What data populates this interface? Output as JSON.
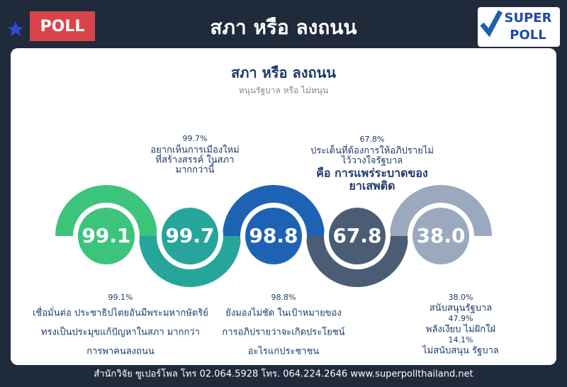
{
  "header": {
    "badge": "POLL",
    "title": "สภา หรือ ลงถนน",
    "logo_top": "SUPER",
    "logo_bottom": "POLL"
  },
  "panel": {
    "title": "สภา หรือ ลงถนน",
    "subtitle": "หนุนรัฐบาล หรือ ไม่หนุน"
  },
  "items": [
    {
      "value": "99.1",
      "color": "#3cc47c",
      "note": {
        "lines": [
          "99.1%",
          "เชื่อมั่นต่อ ประชาธิปไตยอันมีพระมหากษัตริย์",
          "ทรงเป็นประมุขแก้ปัญหาในสภา มากกว่า",
          "การพาคนลงถนน"
        ]
      }
    },
    {
      "value": "99.7",
      "color": "#26a69a",
      "note": {
        "lines": [
          "99.7%",
          "อยากเห็นการเมืองใหม่",
          "ที่สร้างสรรค์ ในสภา",
          "มากกว่านี้"
        ]
      }
    },
    {
      "value": "98.8",
      "color": "#1e62b4",
      "note": {
        "lines": [
          "98.8%",
          "ยังมองไม่ชัด ในเป้าหมายของ",
          "การอภิปรายว่าจะเกิดประโยชน์",
          "อะไรแก่ประชาชน"
        ]
      }
    },
    {
      "value": "67.8",
      "color": "#4b5d74",
      "note": {
        "lines": [
          "67.8%",
          "ประเด็นที่ต้องการให้อภิปรายไม่",
          "ไว้วางใจรัฐบาล"
        ],
        "highlight": [
          "คือ การแพร่ระบาดของ",
          "ยาเสพติด"
        ]
      }
    },
    {
      "value": "38.0",
      "color": "#9aa9bd",
      "note": {
        "lines": [
          "38.0%",
          "สนับสนุนรัฐบาล",
          "47.9%",
          "พลังเงียบ ไม่ฝักใฝ่",
          "14.1%",
          "ไม่สนับสนุน รัฐบาล"
        ]
      }
    }
  ],
  "footer": "สำนักวิจัย ซูเปอร์โพล โทร 02.064.5928  โทร. 064.224.2646 www.superpollthailand.net"
}
